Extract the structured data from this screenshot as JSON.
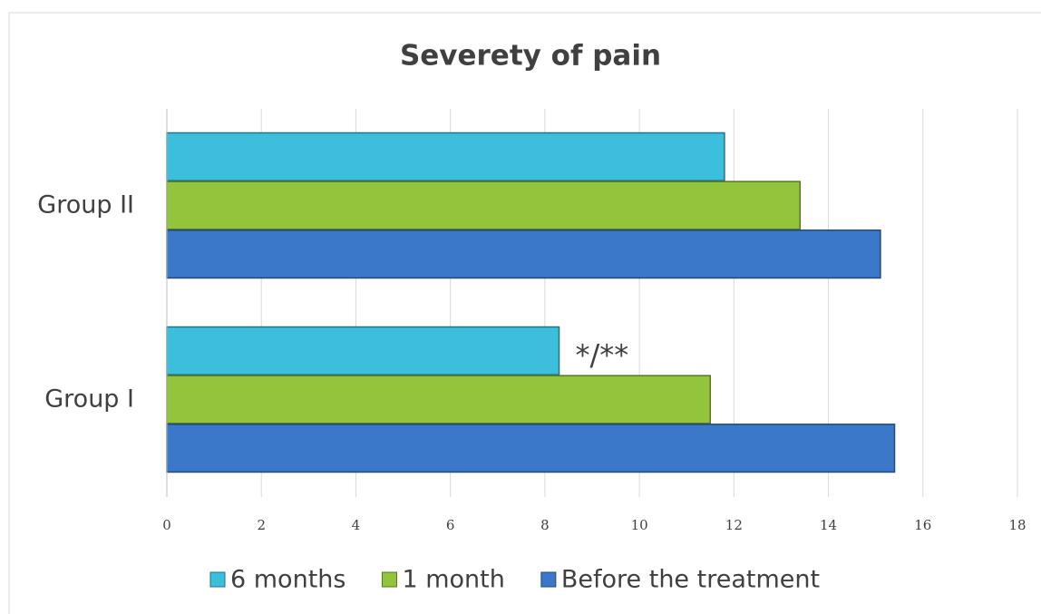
{
  "chart_data": {
    "type": "barh",
    "title": "Severety of pain",
    "categories": [
      "Group I",
      "Group II"
    ],
    "series": [
      {
        "name": "6 months",
        "color": "#3cbfdc",
        "values": [
          8.3,
          11.8
        ]
      },
      {
        "name": "1 month",
        "color": "#92c43c",
        "values": [
          11.5,
          13.4
        ]
      },
      {
        "name": "Before the treatment",
        "color": "#3b78c9",
        "values": [
          15.4,
          15.1
        ]
      }
    ],
    "annotation": "*/**",
    "xlim": [
      0,
      18
    ],
    "xticks": [
      0,
      2,
      4,
      6,
      8,
      10,
      12,
      14,
      16,
      18
    ],
    "grid": true,
    "legend": "bottom"
  }
}
